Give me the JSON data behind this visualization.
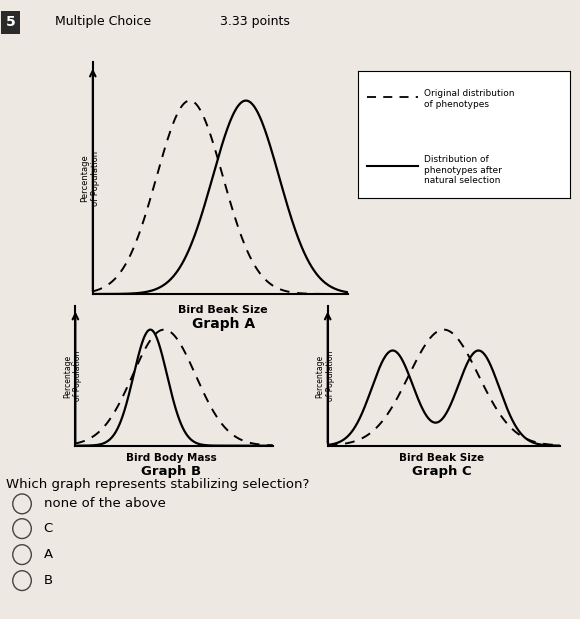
{
  "bg_color": "#ede8e2",
  "question_number": "5",
  "question_type": "Multiple Choice",
  "points": "3.33 points",
  "question_text": "Which graph represents stabilizing selection?",
  "choices": [
    "none of the above",
    "C",
    "A",
    "B"
  ],
  "legend_dashed": "Original distribution\nof phenotypes",
  "legend_solid": "Distribution of\nphenotypes after\nnatural selection",
  "graph_a_xlabel": "Bird Beak Size",
  "graph_a_title": "Graph A",
  "graph_b_xlabel": "Bird Body Mass",
  "graph_b_title": "Graph B",
  "graph_c_xlabel": "Bird Beak Size",
  "graph_c_title": "Graph C",
  "ylabel": "Percentage\nof Population"
}
